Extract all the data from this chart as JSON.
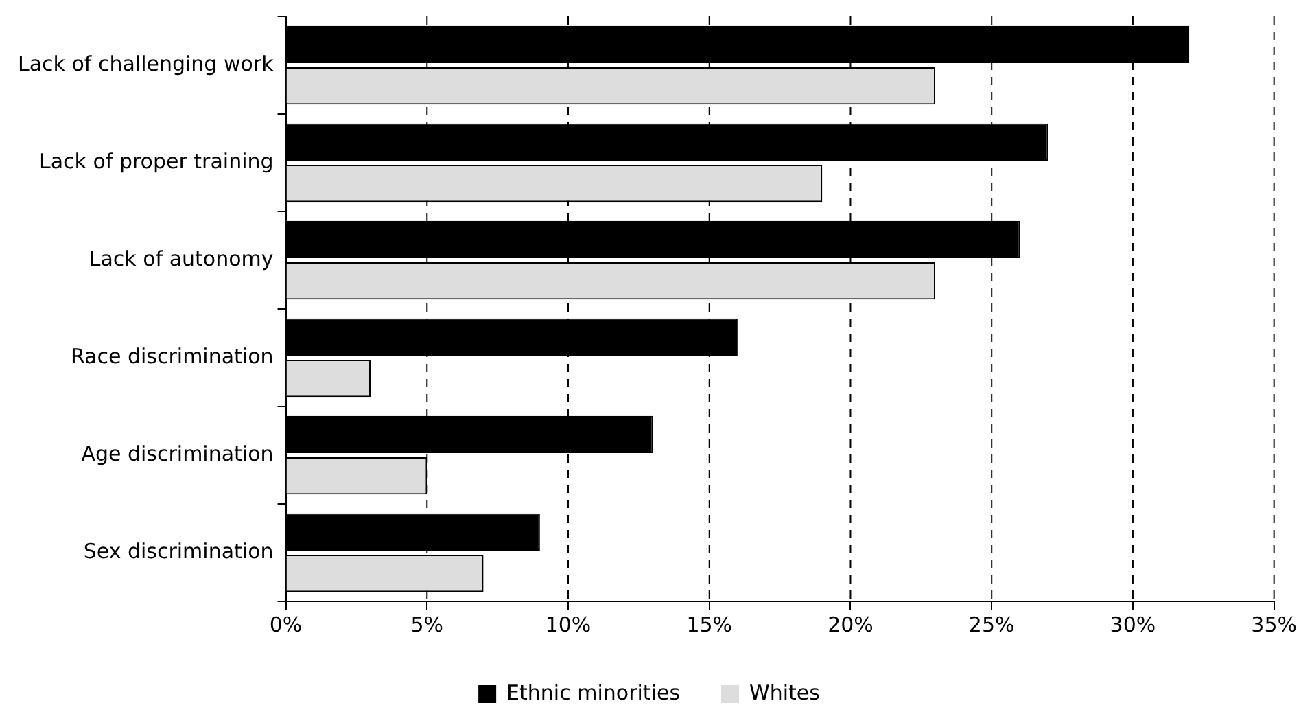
{
  "chart_data": {
    "type": "bar",
    "orientation": "horizontal",
    "categories": [
      "Lack of challenging work",
      "Lack of proper training",
      "Lack of autonomy",
      "Race discrimination",
      "Age discrimination",
      "Sex discrimination"
    ],
    "series": [
      {
        "name": "Ethnic minorities",
        "color": "#000000",
        "values": [
          32,
          27,
          26,
          16,
          13,
          9
        ]
      },
      {
        "name": "Whites",
        "color": "#dddddd",
        "values": [
          23,
          19,
          23,
          3,
          5,
          7
        ]
      }
    ],
    "xlim": [
      0,
      35
    ],
    "xticks": [
      {
        "value": 0,
        "label": "0%"
      },
      {
        "value": 5,
        "label": "5%"
      },
      {
        "value": 10,
        "label": "10%"
      },
      {
        "value": 15,
        "label": "15%"
      },
      {
        "value": 20,
        "label": "20%"
      },
      {
        "value": 25,
        "label": "25%"
      },
      {
        "value": 30,
        "label": "30%"
      },
      {
        "value": 35,
        "label": "35%"
      }
    ],
    "grid": "x",
    "legend": "bottom"
  }
}
